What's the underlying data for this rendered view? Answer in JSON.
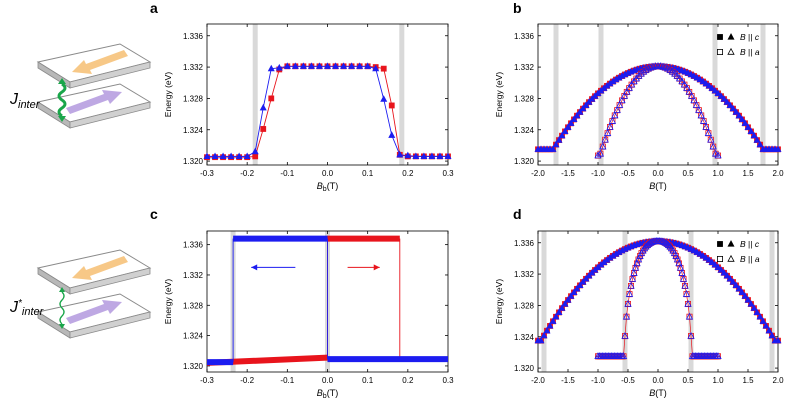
{
  "colors": {
    "red": "#e8141c",
    "blue": "#1c1cf0",
    "shade": "#d9d9d9",
    "orange": "#f6c27a",
    "purple": "#b79ee0",
    "green": "#1aa64a",
    "axis": "#000000"
  },
  "schematics": [
    {
      "label_main": "J",
      "label_sub": "inter",
      "label_sup": "",
      "coupling": "strong"
    },
    {
      "label_main": "J",
      "label_sub": "inter",
      "label_sup": "*",
      "coupling": "weak"
    }
  ],
  "chart_data": [
    {
      "panel": "a",
      "type": "line",
      "xlabel_main": "B",
      "xlabel_sub": "b",
      "xlabel_unit": "(T)",
      "ylabel": "Energy (eV)",
      "xlim": [
        -0.3,
        0.3
      ],
      "ylim": [
        1.3195,
        1.3375
      ],
      "xticks": [
        -0.3,
        -0.2,
        -0.1,
        0.0,
        0.1,
        0.2,
        0.3
      ],
      "xtick_labels": [
        "-0.3",
        "-0.2",
        "-0.1",
        "0.0",
        "0.1",
        "0.2",
        "0.3"
      ],
      "yticks": [
        1.32,
        1.324,
        1.328,
        1.332,
        1.336
      ],
      "ytick_labels": [
        "1.320",
        "1.324",
        "1.328",
        "1.332",
        "1.336"
      ],
      "shaded_x": [
        -0.18,
        0.185
      ],
      "series": [
        {
          "name": "red",
          "marker": "square",
          "fill": true,
          "x": [
            -0.3,
            -0.28,
            -0.26,
            -0.24,
            -0.22,
            -0.2,
            -0.18,
            -0.16,
            -0.14,
            -0.12,
            -0.1,
            -0.08,
            -0.06,
            -0.04,
            -0.02,
            0.0,
            0.02,
            0.04,
            0.06,
            0.08,
            0.1,
            0.12,
            0.14,
            0.16,
            0.18,
            0.2,
            0.22,
            0.24,
            0.26,
            0.28,
            0.3
          ],
          "y": [
            1.3205,
            1.3205,
            1.3205,
            1.3205,
            1.3205,
            1.3205,
            1.3206,
            1.3241,
            1.328,
            1.3317,
            1.3321,
            1.3321,
            1.3321,
            1.3321,
            1.3321,
            1.3321,
            1.3321,
            1.3321,
            1.3321,
            1.3321,
            1.3321,
            1.332,
            1.3318,
            1.3271,
            1.3208,
            1.3206,
            1.3206,
            1.3206,
            1.3206,
            1.3206,
            1.3206
          ]
        },
        {
          "name": "blue",
          "marker": "triangle",
          "fill": true,
          "x": [
            -0.3,
            -0.28,
            -0.26,
            -0.24,
            -0.22,
            -0.2,
            -0.18,
            -0.16,
            -0.14,
            -0.12,
            -0.1,
            -0.08,
            -0.06,
            -0.04,
            -0.02,
            0.0,
            0.02,
            0.04,
            0.06,
            0.08,
            0.1,
            0.12,
            0.14,
            0.16,
            0.18,
            0.2,
            0.22,
            0.24,
            0.26,
            0.28,
            0.3
          ],
          "y": [
            1.3206,
            1.3206,
            1.3206,
            1.3206,
            1.3206,
            1.3206,
            1.3212,
            1.3268,
            1.3318,
            1.3319,
            1.3321,
            1.3321,
            1.3321,
            1.3321,
            1.3321,
            1.3321,
            1.3321,
            1.3321,
            1.3321,
            1.3321,
            1.3321,
            1.3318,
            1.3279,
            1.3233,
            1.3208,
            1.3207,
            1.3206,
            1.3206,
            1.3206,
            1.3206,
            1.3206
          ]
        }
      ]
    },
    {
      "panel": "b",
      "type": "scatter",
      "xlabel_main": "B",
      "xlabel_sub": "",
      "xlabel_unit": "(T)",
      "ylabel": "Energy (eV)",
      "xlim": [
        -2.0,
        2.0
      ],
      "ylim": [
        1.3195,
        1.3375
      ],
      "xticks": [
        -2.0,
        -1.5,
        -1.0,
        -0.5,
        0.0,
        0.5,
        1.0,
        1.5,
        2.0
      ],
      "xtick_labels": [
        "-2.0",
        "-1.5",
        "-1.0",
        "-0.5",
        "0.0",
        "0.5",
        "1.0",
        "1.5",
        "2.0"
      ],
      "yticks": [
        1.32,
        1.324,
        1.328,
        1.332,
        1.336
      ],
      "ytick_labels": [
        "1.320",
        "1.324",
        "1.328",
        "1.332",
        "1.336"
      ],
      "shaded_x": [
        -1.7,
        -0.95,
        0.95,
        1.75
      ],
      "curves": [
        {
          "name": "B || c",
          "filled": true,
          "x_range": [
            -2.0,
            2.0
          ],
          "step": 0.05,
          "Bc": 1.75,
          "E0": 1.3321,
          "Emin": 1.3215,
          "shape": "parabolic"
        },
        {
          "name": "B || a",
          "filled": false,
          "x_range": [
            -1.0,
            1.0
          ],
          "step": 0.04,
          "Bc": 0.97,
          "E0": 1.3321,
          "Emin": 1.3207,
          "shape": "parabolic"
        }
      ],
      "legend": [
        {
          "symbols": "filled",
          "main": "B",
          "rel": "||",
          "axis": "c"
        },
        {
          "symbols": "open",
          "main": "B",
          "rel": "||",
          "axis": "a"
        }
      ]
    },
    {
      "panel": "c",
      "type": "line",
      "xlabel_main": "B",
      "xlabel_sub": "b",
      "xlabel_unit": "(T)",
      "ylabel": "Energy (eV)",
      "xlim": [
        -0.3,
        0.3
      ],
      "ylim": [
        1.3192,
        1.3378
      ],
      "xticks": [
        -0.3,
        -0.2,
        -0.1,
        0.0,
        0.1,
        0.2,
        0.3
      ],
      "xtick_labels": [
        "-0.3",
        "-0.2",
        "-0.1",
        "0.0",
        "0.1",
        "0.2",
        "0.3"
      ],
      "yticks": [
        1.32,
        1.324,
        1.328,
        1.332,
        1.336
      ],
      "ytick_labels": [
        "1.320",
        "1.324",
        "1.328",
        "1.332",
        "1.336"
      ],
      "shaded_x": [
        -0.235,
        0.0
      ],
      "series": [
        {
          "name": "blue sweep",
          "x_low": [
            -0.3,
            -0.235
          ],
          "y_low": 1.3205,
          "jump_x": -0.235,
          "x_high": [
            -0.235,
            0.0
          ],
          "y_high": 1.3368,
          "drop_x": 0.0,
          "x_low2": [
            0.0,
            0.3
          ],
          "y_low2": 1.3209
        },
        {
          "name": "red sweep",
          "x_low": [
            -0.3,
            0.0
          ],
          "y_low_start": 1.3204,
          "y_low_end": 1.3211,
          "jump_x": 0.0,
          "x_high": [
            0.0,
            0.18
          ],
          "y_high": 1.3368,
          "drop_x": 0.18
        }
      ],
      "arrows": [
        {
          "color": "blue",
          "from_x": -0.08,
          "to_x": -0.19,
          "y": 1.333
        },
        {
          "color": "red",
          "from_x": 0.05,
          "to_x": 0.13,
          "y": 1.333
        }
      ]
    },
    {
      "panel": "d",
      "type": "scatter",
      "xlabel_main": "B",
      "xlabel_sub": "",
      "xlabel_unit": "(T)",
      "ylabel": "Energy (eV)",
      "xlim": [
        -2.0,
        2.0
      ],
      "ylim": [
        1.3195,
        1.3375
      ],
      "xticks": [
        -2.0,
        -1.5,
        -1.0,
        -0.5,
        0.0,
        0.5,
        1.0,
        1.5,
        2.0
      ],
      "xtick_labels": [
        "-2.0",
        "-1.5",
        "-1.0",
        "-0.5",
        "0.0",
        "0.5",
        "1.0",
        "1.5",
        "2.0"
      ],
      "yticks": [
        1.32,
        1.324,
        1.328,
        1.332,
        1.336
      ],
      "ytick_labels": [
        "1.320",
        "1.324",
        "1.328",
        "1.332",
        "1.336"
      ],
      "shaded_x": [
        -1.9,
        -0.55,
        0.55,
        1.9
      ],
      "curves": [
        {
          "name": "B || c",
          "filled": true,
          "x_range": [
            -2.0,
            2.0
          ],
          "step": 0.05,
          "Bc": 1.95,
          "E0": 1.3362,
          "Emin": 1.3235,
          "shape": "parabolic"
        },
        {
          "name": "B || a",
          "filled": false,
          "x_range": [
            -1.0,
            1.0
          ],
          "step": 0.025,
          "Bc": 0.56,
          "E0": 1.3362,
          "Emin": 1.3215,
          "shape": "sharp"
        }
      ],
      "legend": [
        {
          "symbols": "filled",
          "main": "B",
          "rel": "||",
          "axis": "c"
        },
        {
          "symbols": "open",
          "main": "B",
          "rel": "||",
          "axis": "a"
        }
      ]
    }
  ]
}
